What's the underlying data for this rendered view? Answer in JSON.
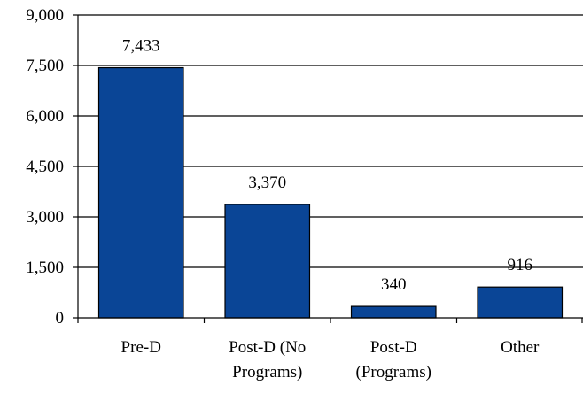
{
  "chart_data": {
    "type": "bar",
    "title": "",
    "xlabel": "",
    "ylabel": "",
    "categories": [
      [
        "Pre-D"
      ],
      [
        "Post-D (No",
        "Programs)"
      ],
      [
        "Post-D",
        "(Programs)"
      ],
      [
        "Other"
      ]
    ],
    "values": [
      7433,
      3370,
      340,
      916
    ],
    "value_labels": [
      "7,433",
      "3,370",
      "340",
      "916"
    ],
    "ylim": [
      0,
      9000
    ],
    "yticks": [
      0,
      1500,
      3000,
      4500,
      6000,
      7500,
      9000
    ],
    "ytick_labels": [
      "0",
      "1,500",
      "3,000",
      "4,500",
      "6,000",
      "7,500",
      "9,000"
    ],
    "grid": true,
    "bar_color": "#0a4596",
    "bar_edge_color": "#000000"
  }
}
